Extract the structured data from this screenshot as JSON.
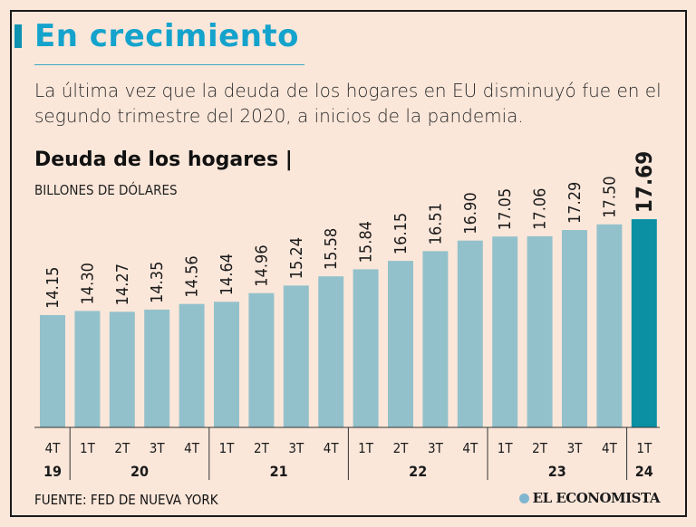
{
  "header": {
    "title": "En crecimiento",
    "subtitle": "La última vez que la deuda de los hogares en EU disminuyó fue en el segundo trimestre del 2020, a inicios de la pandemia."
  },
  "footer": {
    "source": "FUENTE: FED DE NUEVA YORK",
    "brand": "EL ECONOMISTA"
  },
  "colors": {
    "bar": "#93c1cb",
    "highlight": "#0a8fa3",
    "title": "#14a3cc"
  },
  "chart_data": {
    "type": "bar",
    "title": "Deuda de los hogares |",
    "ylabel": "BILLONES DE DÓLARES",
    "xlabel": "",
    "ylim": [
      10,
      18
    ],
    "grid": false,
    "categories": [
      "4T",
      "1T",
      "2T",
      "3T",
      "4T",
      "1T",
      "2T",
      "3T",
      "4T",
      "1T",
      "2T",
      "3T",
      "4T",
      "1T",
      "2T",
      "3T",
      "4T",
      "1T"
    ],
    "values": [
      14.15,
      14.3,
      14.27,
      14.35,
      14.56,
      14.64,
      14.96,
      15.24,
      15.58,
      15.84,
      16.15,
      16.51,
      16.9,
      17.05,
      17.06,
      17.29,
      17.5,
      17.69
    ],
    "value_labels": [
      "14.15",
      "14.30",
      "14.27",
      "14.35",
      "14.56",
      "14.64",
      "14.96",
      "15.24",
      "15.58",
      "15.84",
      "16.15",
      "16.51",
      "16.90",
      "17.05",
      "17.06",
      "17.29",
      "17.50",
      "17.69"
    ],
    "highlight_index": 17,
    "year_groups": [
      {
        "label": "19",
        "count": 1
      },
      {
        "label": "20",
        "count": 4
      },
      {
        "label": "21",
        "count": 4
      },
      {
        "label": "22",
        "count": 4
      },
      {
        "label": "23",
        "count": 4
      },
      {
        "label": "24",
        "count": 1
      }
    ]
  }
}
